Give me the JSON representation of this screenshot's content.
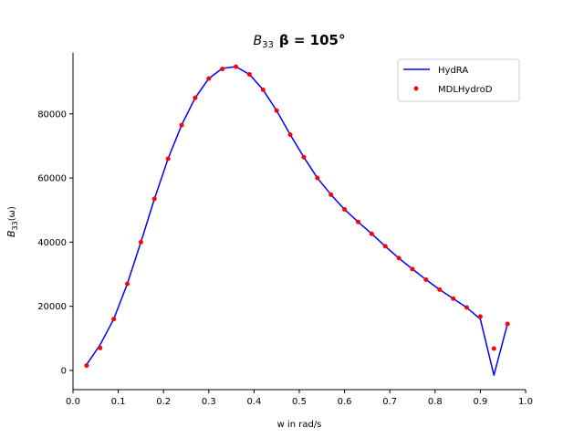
{
  "chart_data": {
    "type": "line",
    "title_symbol": "B",
    "title_subscript": "33",
    "title_rest": "β = 105°",
    "xlabel": "w in rad/s",
    "ylabel_symbol": "B",
    "ylabel_subscript": "33",
    "ylabel_rest": "(ω)",
    "xlim": [
      0.0,
      1.0
    ],
    "ylim": [
      -6000,
      99000
    ],
    "xticks": [
      0.0,
      0.1,
      0.2,
      0.3,
      0.4,
      0.5,
      0.6,
      0.7,
      0.8,
      0.9,
      1.0
    ],
    "xtick_labels": [
      "0.0",
      "0.1",
      "0.2",
      "0.3",
      "0.4",
      "0.5",
      "0.6",
      "0.7",
      "0.8",
      "0.9",
      "1.0"
    ],
    "yticks": [
      0,
      20000,
      40000,
      60000,
      80000
    ],
    "ytick_labels": [
      "0",
      "20000",
      "40000",
      "60000",
      "80000"
    ],
    "grid": false,
    "legend_position": "top-right",
    "series": [
      {
        "name": "HydRA",
        "style": "line",
        "color": "#0000ff",
        "x": [
          0.03,
          0.06,
          0.09,
          0.12,
          0.15,
          0.18,
          0.21,
          0.24,
          0.27,
          0.3,
          0.33,
          0.36,
          0.39,
          0.42,
          0.45,
          0.48,
          0.51,
          0.54,
          0.57,
          0.6,
          0.63,
          0.66,
          0.69,
          0.72,
          0.75,
          0.78,
          0.81,
          0.84,
          0.87,
          0.9,
          0.93,
          0.96
        ],
        "y": [
          1800,
          8000,
          16000,
          27000,
          40000,
          53500,
          66000,
          76500,
          85000,
          91000,
          94200,
          94700,
          92300,
          87500,
          81000,
          73500,
          66500,
          60000,
          54800,
          50200,
          46300,
          42600,
          38700,
          35000,
          31600,
          28300,
          25200,
          22400,
          19600,
          16000,
          -1500,
          14500
        ]
      },
      {
        "name": "MDLHydroD",
        "style": "points",
        "color": "#ff0000",
        "x": [
          0.03,
          0.06,
          0.09,
          0.12,
          0.15,
          0.18,
          0.21,
          0.24,
          0.27,
          0.3,
          0.33,
          0.36,
          0.39,
          0.42,
          0.45,
          0.48,
          0.51,
          0.54,
          0.57,
          0.6,
          0.63,
          0.66,
          0.69,
          0.72,
          0.75,
          0.78,
          0.81,
          0.84,
          0.87,
          0.9,
          0.93,
          0.96
        ],
        "y": [
          1500,
          7000,
          16000,
          27000,
          40000,
          53500,
          66000,
          76500,
          85000,
          91000,
          94000,
          94700,
          92300,
          87500,
          81000,
          73500,
          66500,
          60000,
          54800,
          50200,
          46300,
          42600,
          38700,
          35000,
          31600,
          28300,
          25200,
          22400,
          19600,
          16800,
          6800,
          14500
        ]
      }
    ]
  }
}
